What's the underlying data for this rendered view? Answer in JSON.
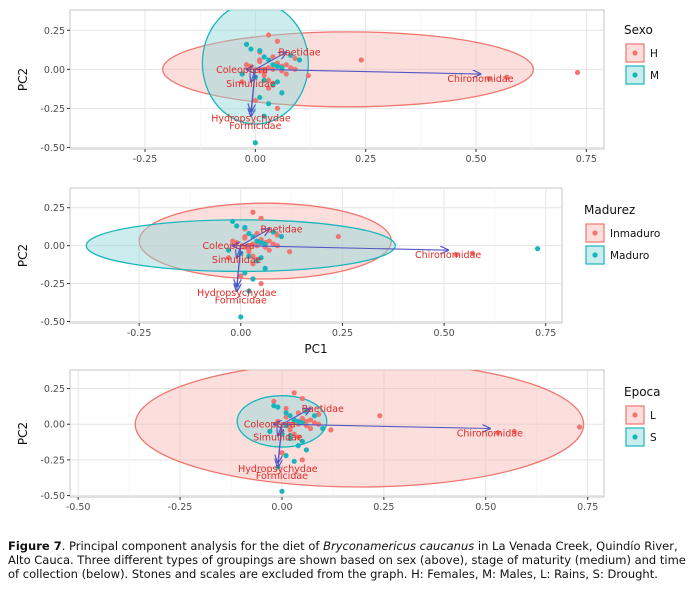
{
  "colors": {
    "group1": "#F0766F",
    "group1_fill": "#F8B8B3",
    "group2": "#18B6BC",
    "group2_fill": "#8FD8DA",
    "arrow": "#5456C4",
    "loading_label": "#E02A26",
    "panel_bg": "#FFFFFF",
    "grid": "#E4E4E4"
  },
  "chart_data": [
    {
      "type": "scatter",
      "title": "",
      "xlabel": "",
      "ylabel": "PC2",
      "xlim": [
        -0.42,
        0.79
      ],
      "ylim": [
        -0.51,
        0.38
      ],
      "xticks": [
        -0.25,
        0.0,
        0.25,
        0.5,
        0.75
      ],
      "xtick_labels": [
        "-0.25",
        "0.00",
        "0.25",
        "0.50",
        "0.75"
      ],
      "yticks": [
        0.25,
        0.0,
        -0.25,
        -0.5
      ],
      "ytick_labels": [
        "0.25",
        "0.00",
        "-0.25",
        "-0.50"
      ],
      "legend": {
        "title": "Sexo",
        "labels": [
          "H",
          "M"
        ],
        "position": "right"
      },
      "ellipses": [
        {
          "group": "H",
          "cx": 0.21,
          "cy": 0.0,
          "rx": 0.42,
          "ry": 0.24
        },
        {
          "group": "M",
          "cx": 0.0,
          "cy": 0.04,
          "rx": 0.12,
          "ry": 0.39
        }
      ],
      "loadings": [
        {
          "label": "Baetidae",
          "x": 0.07,
          "y": 0.11,
          "lx": 0.1,
          "ly": 0.11
        },
        {
          "label": "Chironomidae",
          "x": 0.51,
          "y": -0.03,
          "lx": 0.51,
          "ly": -0.06
        },
        {
          "label": "Coleoptera",
          "x": -0.02,
          "y": 0.0,
          "lx": -0.03,
          "ly": 0.0
        },
        {
          "label": "Simuliidae",
          "x": -0.01,
          "y": -0.08,
          "lx": -0.01,
          "ly": -0.09
        },
        {
          "label": "Hydropsychydae",
          "x": -0.01,
          "y": -0.27,
          "lx": -0.01,
          "ly": -0.31
        },
        {
          "label": "Formicidae",
          "x": -0.01,
          "y": -0.3,
          "lx": 0.0,
          "ly": -0.36
        }
      ],
      "series": [
        {
          "name": "H",
          "x": [
            0.73,
            0.24,
            0.53,
            0.57,
            0.03,
            0.05,
            0.09,
            0.01,
            0.02,
            0.04,
            -0.01,
            0.06,
            0.0,
            0.03,
            -0.02,
            0.08,
            0.05,
            0.02,
            0.04,
            0.07,
            0.01,
            -0.03,
            0.03,
            0.06,
            0.02,
            0.0,
            0.05,
            0.01,
            0.04,
            0.03,
            0.02,
            0.07,
            0.01,
            0.09,
            0.12
          ],
          "y": [
            -0.02,
            0.06,
            -0.06,
            -0.05,
            0.22,
            0.18,
            0.07,
            0.05,
            -0.02,
            0.0,
            0.02,
            -0.01,
            -0.05,
            -0.07,
            0.03,
            0.01,
            0.04,
            -0.04,
            0.08,
            -0.03,
            0.11,
            -0.08,
            -0.12,
            0.02,
            0.0,
            -0.2,
            -0.25,
            0.06,
            -0.09,
            0.01,
            -0.02,
            0.03,
            -0.01,
            0.0,
            -0.04
          ]
        },
        {
          "name": "M",
          "x": [
            -0.02,
            -0.01,
            0.01,
            0.02,
            0.03,
            0.04,
            0.05,
            0.06,
            0.08,
            0.1,
            -0.03,
            0.0,
            0.02,
            0.04,
            0.06,
            0.01,
            0.03,
            -0.01,
            0.02,
            0.05,
            0.0
          ],
          "y": [
            0.16,
            0.13,
            0.12,
            0.08,
            0.06,
            0.03,
            0.02,
            0.01,
            0.09,
            0.06,
            -0.03,
            -0.05,
            -0.07,
            -0.1,
            -0.15,
            -0.18,
            -0.22,
            -0.26,
            -0.3,
            -0.08,
            -0.47
          ]
        }
      ]
    },
    {
      "type": "scatter",
      "title": "",
      "xlabel": "PC1",
      "ylabel": "PC2",
      "xlim": [
        -0.42,
        0.79
      ],
      "ylim": [
        -0.51,
        0.38
      ],
      "xticks": [
        -0.25,
        0.0,
        0.25,
        0.5,
        0.75
      ],
      "xtick_labels": [
        "-0.25",
        "0.00",
        "0.25",
        "0.50",
        "0.75"
      ],
      "yticks": [
        0.25,
        0.0,
        -0.25,
        -0.5
      ],
      "ytick_labels": [
        "0.25",
        "0.00",
        "-0.25",
        "-0.50"
      ],
      "legend": {
        "title": "Madurez",
        "labels": [
          "Inmaduro",
          "Maduro"
        ],
        "position": "right"
      },
      "ellipses": [
        {
          "group": "Inmaduro",
          "cx": 0.06,
          "cy": 0.03,
          "rx": 0.31,
          "ry": 0.25
        },
        {
          "group": "Maduro",
          "cx": 0.0,
          "cy": 0.0,
          "rx": 0.38,
          "ry": 0.17
        }
      ],
      "loadings": [
        {
          "label": "Baetidae",
          "x": 0.07,
          "y": 0.11,
          "lx": 0.1,
          "ly": 0.11
        },
        {
          "label": "Chironomidae",
          "x": 0.51,
          "y": -0.03,
          "lx": 0.51,
          "ly": -0.06
        },
        {
          "label": "Coleoptera",
          "x": -0.02,
          "y": 0.0,
          "lx": -0.03,
          "ly": 0.0
        },
        {
          "label": "Simuliidae",
          "x": -0.01,
          "y": -0.08,
          "lx": -0.01,
          "ly": -0.09
        },
        {
          "label": "Hydropsychydae",
          "x": -0.01,
          "y": -0.27,
          "lx": -0.01,
          "ly": -0.31
        },
        {
          "label": "Formicidae",
          "x": -0.01,
          "y": -0.3,
          "lx": 0.0,
          "ly": -0.36
        }
      ],
      "series": [
        {
          "name": "Inmaduro",
          "x": [
            0.24,
            0.53,
            0.57,
            0.03,
            0.05,
            0.09,
            0.01,
            0.02,
            0.04,
            -0.01,
            0.06,
            0.0,
            0.03,
            -0.02,
            0.08,
            0.05,
            0.02,
            0.04,
            0.07,
            0.01,
            -0.03,
            0.03,
            0.06,
            0.02,
            0.0,
            0.05,
            0.01,
            0.04,
            0.03,
            0.02,
            0.07,
            0.01,
            0.09,
            0.12
          ],
          "y": [
            0.06,
            -0.06,
            -0.05,
            0.22,
            0.18,
            0.07,
            0.05,
            -0.02,
            0.0,
            0.02,
            -0.01,
            -0.05,
            -0.07,
            0.03,
            0.01,
            0.04,
            -0.04,
            0.08,
            -0.03,
            0.11,
            -0.08,
            -0.12,
            0.02,
            0.0,
            -0.2,
            -0.25,
            0.06,
            -0.09,
            0.01,
            -0.02,
            0.03,
            -0.01,
            0.0,
            -0.04
          ]
        },
        {
          "name": "Maduro",
          "x": [
            0.73,
            -0.02,
            -0.01,
            0.01,
            0.02,
            0.03,
            0.04,
            0.05,
            0.06,
            0.08,
            0.1,
            -0.03,
            0.0,
            0.02,
            0.04,
            0.06,
            0.01,
            0.03,
            -0.01,
            0.02,
            0.05,
            0.0
          ],
          "y": [
            -0.02,
            0.16,
            0.13,
            0.12,
            0.08,
            0.06,
            0.03,
            0.02,
            0.01,
            0.09,
            0.06,
            -0.03,
            -0.05,
            -0.07,
            -0.1,
            -0.15,
            -0.18,
            -0.22,
            -0.26,
            -0.3,
            -0.08,
            -0.47
          ]
        }
      ]
    },
    {
      "type": "scatter",
      "title": "",
      "xlabel": "",
      "ylabel": "PC2",
      "xlim": [
        -0.52,
        0.79
      ],
      "ylim": [
        -0.51,
        0.38
      ],
      "xticks": [
        -0.5,
        -0.25,
        0.0,
        0.25,
        0.5,
        0.75
      ],
      "xtick_labels": [
        "-0.50",
        "-0.25",
        "0.00",
        "0.25",
        "0.50",
        "0.75"
      ],
      "yticks": [
        0.25,
        0.0,
        -0.25,
        -0.5
      ],
      "ytick_labels": [
        "0.25",
        "0.00",
        "-0.25",
        "-0.50"
      ],
      "legend": {
        "title": "Epoca",
        "labels": [
          "L",
          "S"
        ],
        "position": "right"
      },
      "ellipses": [
        {
          "group": "L",
          "cx": 0.19,
          "cy": 0.0,
          "rx": 0.55,
          "ry": 0.44
        },
        {
          "group": "S",
          "cx": 0.0,
          "cy": 0.02,
          "rx": 0.11,
          "ry": 0.18
        }
      ],
      "loadings": [
        {
          "label": "Baetidae",
          "x": 0.07,
          "y": 0.11,
          "lx": 0.1,
          "ly": 0.11
        },
        {
          "label": "Chironomidae",
          "x": 0.51,
          "y": -0.03,
          "lx": 0.51,
          "ly": -0.06
        },
        {
          "label": "Coleoptera",
          "x": -0.02,
          "y": 0.0,
          "lx": -0.03,
          "ly": 0.0
        },
        {
          "label": "Simuliidae",
          "x": -0.01,
          "y": -0.08,
          "lx": -0.01,
          "ly": -0.09
        },
        {
          "label": "Hydropsychydae",
          "x": -0.01,
          "y": -0.27,
          "lx": -0.01,
          "ly": -0.31
        },
        {
          "label": "Formicidae",
          "x": -0.01,
          "y": -0.3,
          "lx": 0.0,
          "ly": -0.36
        }
      ],
      "series": [
        {
          "name": "L",
          "x": [
            0.73,
            0.24,
            0.53,
            0.57,
            -0.02,
            0.03,
            0.05,
            0.09,
            0.01,
            0.02,
            0.04,
            -0.01,
            0.06,
            0.0,
            0.03,
            0.08,
            0.05,
            0.02,
            0.04,
            0.07,
            0.01,
            0.06,
            0.02,
            0.0,
            0.05,
            0.04,
            0.03,
            0.07,
            0.09,
            0.12
          ],
          "y": [
            -0.02,
            0.06,
            -0.06,
            -0.05,
            0.16,
            0.22,
            0.18,
            0.07,
            0.05,
            -0.02,
            0.0,
            0.02,
            -0.01,
            -0.05,
            -0.07,
            0.01,
            0.04,
            -0.04,
            0.08,
            -0.03,
            0.11,
            0.02,
            0.0,
            -0.2,
            -0.25,
            -0.09,
            0.01,
            0.03,
            0.0,
            -0.04
          ]
        },
        {
          "name": "S",
          "x": [
            -0.02,
            -0.01,
            0.01,
            0.02,
            0.03,
            0.04,
            0.05,
            0.06,
            0.08,
            0.1,
            -0.03,
            0.0,
            0.02,
            0.04,
            0.06,
            0.01,
            0.03,
            -0.01,
            0.02,
            0.05,
            0.0,
            0.01
          ],
          "y": [
            0.13,
            0.12,
            0.08,
            0.06,
            0.03,
            0.02,
            0.01,
            0.09,
            0.06,
            -0.03,
            -0.05,
            -0.07,
            -0.1,
            -0.15,
            -0.18,
            -0.22,
            -0.26,
            -0.3,
            -0.08,
            -0.12,
            -0.47,
            -0.01
          ]
        }
      ]
    }
  ],
  "caption": {
    "label": "Figure 7",
    "text_before": ". Principal component analysis for the diet of ",
    "species": "Bryconamericus caucanus",
    "text_after": " in La Venada Creek, Quindío River, Alto Cauca. Three different types of groupings are shown based on sex (above), stage of maturity (medium) and time of collection (below). Stones and scales are excluded from the graph. H: Females, M: Males, L: Rains, S: Drought."
  }
}
